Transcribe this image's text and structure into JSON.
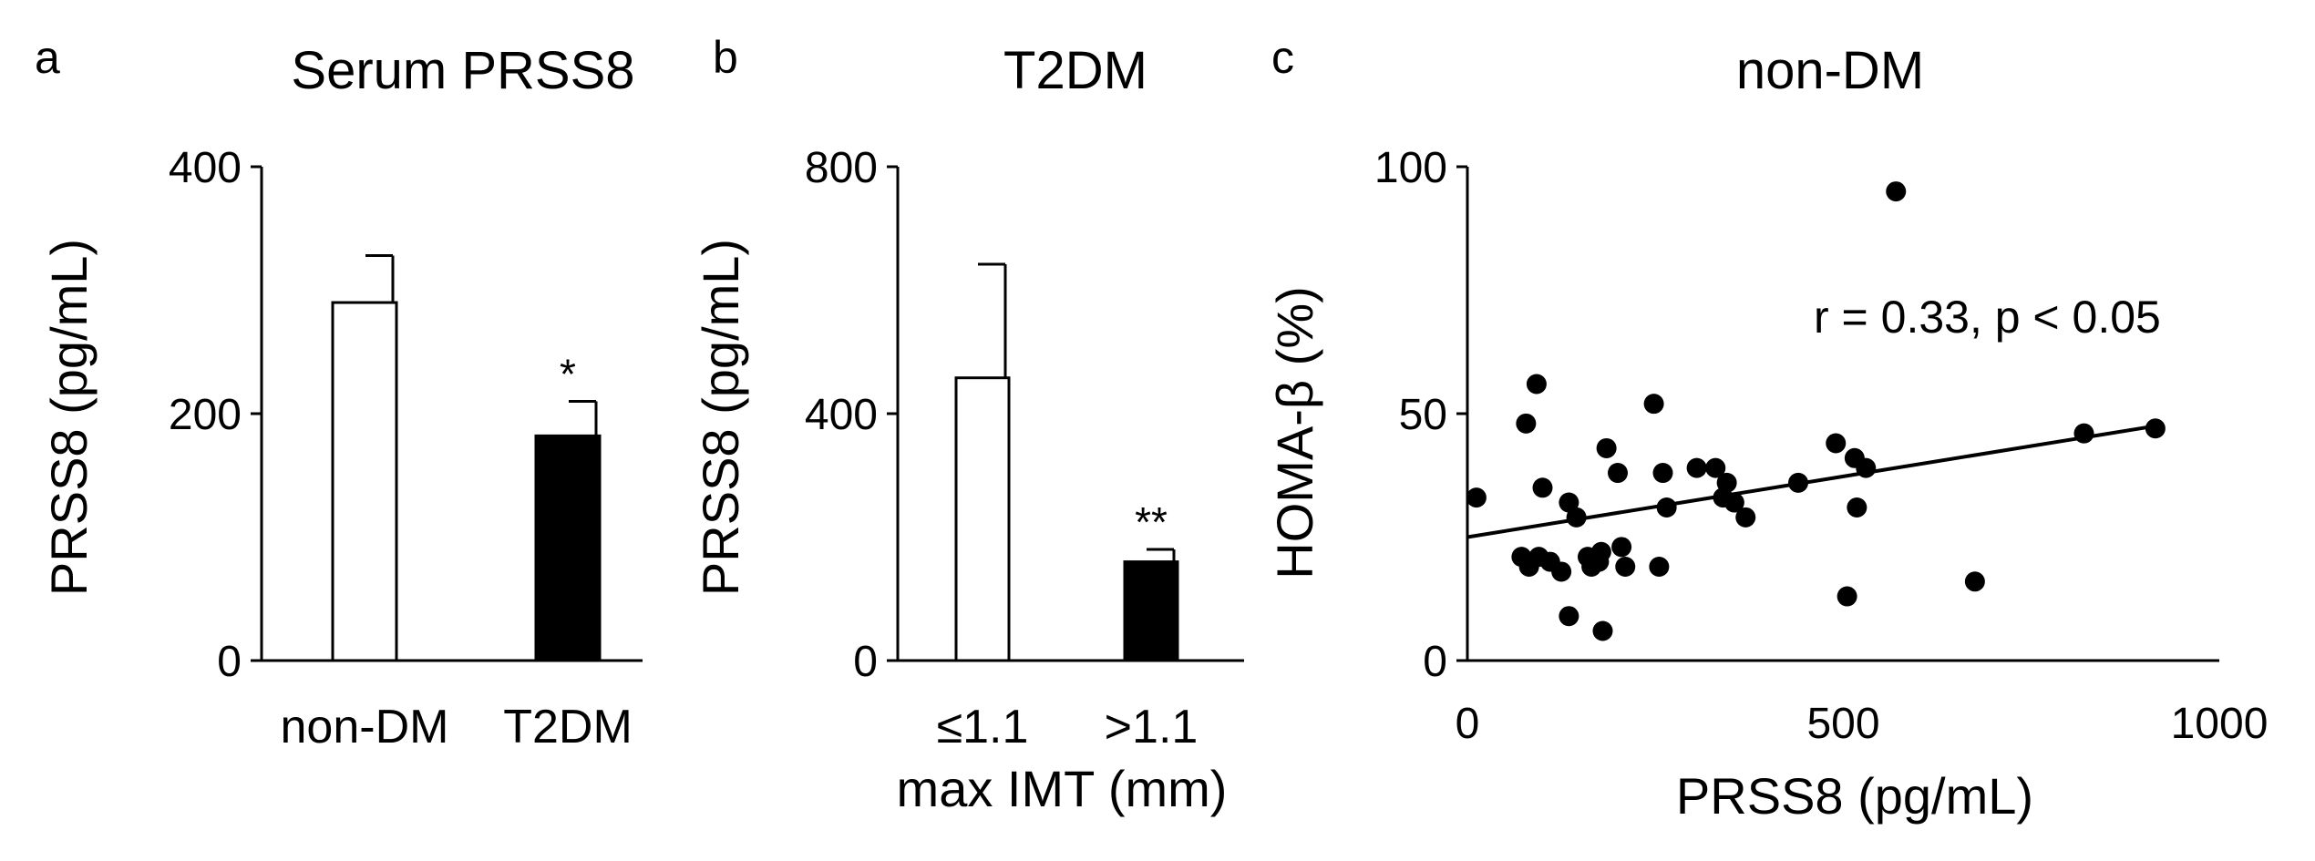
{
  "colors": {
    "ink": "#000000",
    "open_bar_fill": "#ffffff",
    "closed_bar_fill": "#000000"
  },
  "chart_data": [
    {
      "panel": "a",
      "type": "bar",
      "title": "Serum PRSS8",
      "xlabel": "",
      "ylabel": "PRSS8 (pg/mL)",
      "ylim": [
        0,
        400
      ],
      "yticks": [
        "0",
        "200",
        "400"
      ],
      "categories": [
        "non-DM",
        "T2DM"
      ],
      "values": [
        290,
        182
      ],
      "errors": [
        38,
        28
      ],
      "fills": [
        "open",
        "filled"
      ],
      "annotations": [
        "",
        "*"
      ]
    },
    {
      "panel": "b",
      "type": "bar",
      "title": "T2DM",
      "xlabel": "max IMT (mm)",
      "ylabel": "PRSS8 (pg/mL)",
      "ylim": [
        0,
        800
      ],
      "yticks": [
        "0",
        "400",
        "800"
      ],
      "categories": [
        "≤1.1",
        ">1.1"
      ],
      "values": [
        458,
        160
      ],
      "errors": [
        184,
        20
      ],
      "fills": [
        "open",
        "filled"
      ],
      "annotations": [
        "",
        "**"
      ]
    },
    {
      "panel": "c",
      "type": "scatter",
      "title": "non-DM",
      "xlabel": "PRSS8 (pg/mL)",
      "ylabel": "HOMA-β (%)",
      "xlim": [
        0,
        1000
      ],
      "ylim": [
        0,
        100
      ],
      "xticks": [
        "0",
        "500",
        "1000"
      ],
      "yticks": [
        "0",
        "50",
        "100"
      ],
      "annotation": "r = 0.33, p < 0.05",
      "fit_line": {
        "x": [
          0,
          915
        ],
        "y": [
          25,
          47.5
        ]
      },
      "points": [
        {
          "x": 12,
          "y": 33
        },
        {
          "x": 78,
          "y": 48
        },
        {
          "x": 92,
          "y": 56
        },
        {
          "x": 100,
          "y": 35
        },
        {
          "x": 72,
          "y": 21
        },
        {
          "x": 82,
          "y": 19
        },
        {
          "x": 95,
          "y": 21
        },
        {
          "x": 110,
          "y": 20
        },
        {
          "x": 125,
          "y": 18
        },
        {
          "x": 135,
          "y": 32
        },
        {
          "x": 145,
          "y": 29
        },
        {
          "x": 160,
          "y": 21
        },
        {
          "x": 165,
          "y": 19
        },
        {
          "x": 175,
          "y": 20
        },
        {
          "x": 178,
          "y": 22
        },
        {
          "x": 185,
          "y": 43
        },
        {
          "x": 200,
          "y": 38
        },
        {
          "x": 205,
          "y": 23
        },
        {
          "x": 210,
          "y": 19
        },
        {
          "x": 135,
          "y": 9
        },
        {
          "x": 180,
          "y": 6
        },
        {
          "x": 248,
          "y": 52
        },
        {
          "x": 255,
          "y": 19
        },
        {
          "x": 260,
          "y": 38
        },
        {
          "x": 265,
          "y": 31
        },
        {
          "x": 305,
          "y": 39
        },
        {
          "x": 330,
          "y": 39
        },
        {
          "x": 340,
          "y": 33
        },
        {
          "x": 345,
          "y": 36
        },
        {
          "x": 355,
          "y": 32
        },
        {
          "x": 370,
          "y": 29
        },
        {
          "x": 440,
          "y": 36
        },
        {
          "x": 490,
          "y": 44
        },
        {
          "x": 505,
          "y": 13
        },
        {
          "x": 515,
          "y": 41
        },
        {
          "x": 518,
          "y": 31
        },
        {
          "x": 530,
          "y": 39
        },
        {
          "x": 570,
          "y": 95
        },
        {
          "x": 675,
          "y": 16
        },
        {
          "x": 820,
          "y": 46
        },
        {
          "x": 915,
          "y": 47
        }
      ]
    }
  ]
}
